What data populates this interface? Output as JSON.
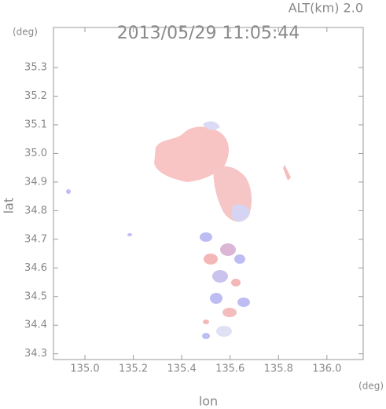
{
  "chart_data": {
    "type": "field",
    "title": "2013/05/29 11:05:44",
    "subtitle": "ALT(km) 2.0",
    "x_label": "lon",
    "y_label": "lat",
    "x_unit": "(deg)",
    "y_unit": "(deg)",
    "xlim": [
      134.87,
      136.15
    ],
    "ylim": [
      34.28,
      35.44
    ],
    "xticks": [
      {
        "value": 135.0,
        "label": "135.0"
      },
      135.2,
      135.4,
      135.6,
      135.8,
      {
        "value": 136.0,
        "label": "136.0"
      }
    ],
    "yticks": [
      34.3,
      34.4,
      34.5,
      34.6,
      34.7,
      34.8,
      34.9,
      {
        "value": 35.0,
        "label": "35.0"
      },
      35.1,
      35.2,
      35.3
    ]
  }
}
